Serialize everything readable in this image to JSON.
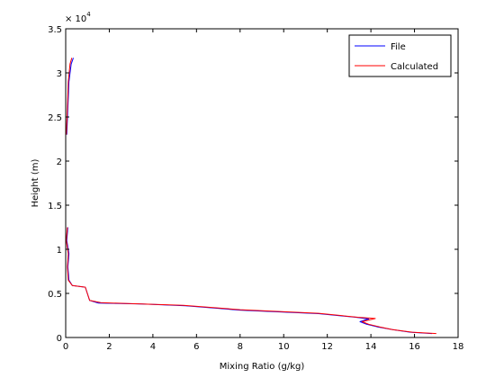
{
  "chart_data": {
    "type": "line",
    "xlabel": "Mixing Ratio (g/kg)",
    "ylabel": "Height (m)",
    "y_multiplier_label": "× 10",
    "y_multiplier_exponent": "4",
    "xlim": [
      0,
      18
    ],
    "ylim": [
      0,
      35000
    ],
    "x_ticks": [
      0,
      2,
      4,
      6,
      8,
      10,
      12,
      14,
      16,
      18
    ],
    "y_ticks": [
      0,
      5000,
      10000,
      15000,
      20000,
      25000,
      30000,
      35000
    ],
    "x_tick_labels": [
      "0",
      "2",
      "4",
      "6",
      "8",
      "10",
      "12",
      "14",
      "16",
      "18"
    ],
    "y_tick_labels": [
      "0",
      "0.5",
      "1",
      "1.5",
      "2",
      "2.5",
      "3",
      "3.5"
    ],
    "legend_location": "top-right",
    "grid": false,
    "series": [
      {
        "name": "File",
        "color": "#0000ff",
        "segments": [
          [
            [
              16.8,
              450
            ],
            [
              15.8,
              600
            ],
            [
              15.0,
              900
            ],
            [
              14.3,
              1200
            ],
            [
              13.8,
              1500
            ],
            [
              13.5,
              1800
            ],
            [
              13.9,
              2100
            ],
            [
              13.3,
              2300
            ],
            [
              11.6,
              2700
            ],
            [
              8.0,
              3100
            ],
            [
              5.5,
              3600
            ],
            [
              3.5,
              3800
            ],
            [
              1.5,
              3900
            ],
            [
              1.1,
              4200
            ],
            [
              0.9,
              5700
            ],
            [
              0.3,
              5900
            ],
            [
              0.15,
              6500
            ],
            [
              0.1,
              8000
            ],
            [
              0.15,
              9500
            ],
            [
              0.05,
              11000
            ],
            [
              0.1,
              12500
            ]
          ],
          [
            [
              0.05,
              23000
            ],
            [
              0.1,
              26000
            ],
            [
              0.15,
              29000
            ],
            [
              0.25,
              31000
            ],
            [
              0.35,
              31700
            ]
          ]
        ]
      },
      {
        "name": "Calculated",
        "color": "#ff0000",
        "segments": [
          [
            [
              17.0,
              450
            ],
            [
              15.9,
              600
            ],
            [
              15.0,
              900
            ],
            [
              14.4,
              1200
            ],
            [
              13.9,
              1500
            ],
            [
              13.6,
              1800
            ],
            [
              14.2,
              2150
            ],
            [
              13.4,
              2300
            ],
            [
              11.6,
              2750
            ],
            [
              8.0,
              3150
            ],
            [
              5.4,
              3650
            ],
            [
              3.5,
              3800
            ],
            [
              1.6,
              3950
            ],
            [
              1.1,
              4200
            ],
            [
              0.9,
              5700
            ],
            [
              0.3,
              5900
            ],
            [
              0.12,
              6500
            ],
            [
              0.08,
              8000
            ],
            [
              0.12,
              9500
            ],
            [
              0.03,
              11000
            ],
            [
              0.08,
              12500
            ]
          ],
          [
            [
              0.03,
              23000
            ],
            [
              0.08,
              26000
            ],
            [
              0.12,
              29000
            ],
            [
              0.2,
              31000
            ],
            [
              0.28,
              31700
            ]
          ]
        ]
      }
    ]
  },
  "legend": {
    "items": [
      {
        "label": "File",
        "color": "#0000ff"
      },
      {
        "label": "Calculated",
        "color": "#ff0000"
      }
    ]
  }
}
